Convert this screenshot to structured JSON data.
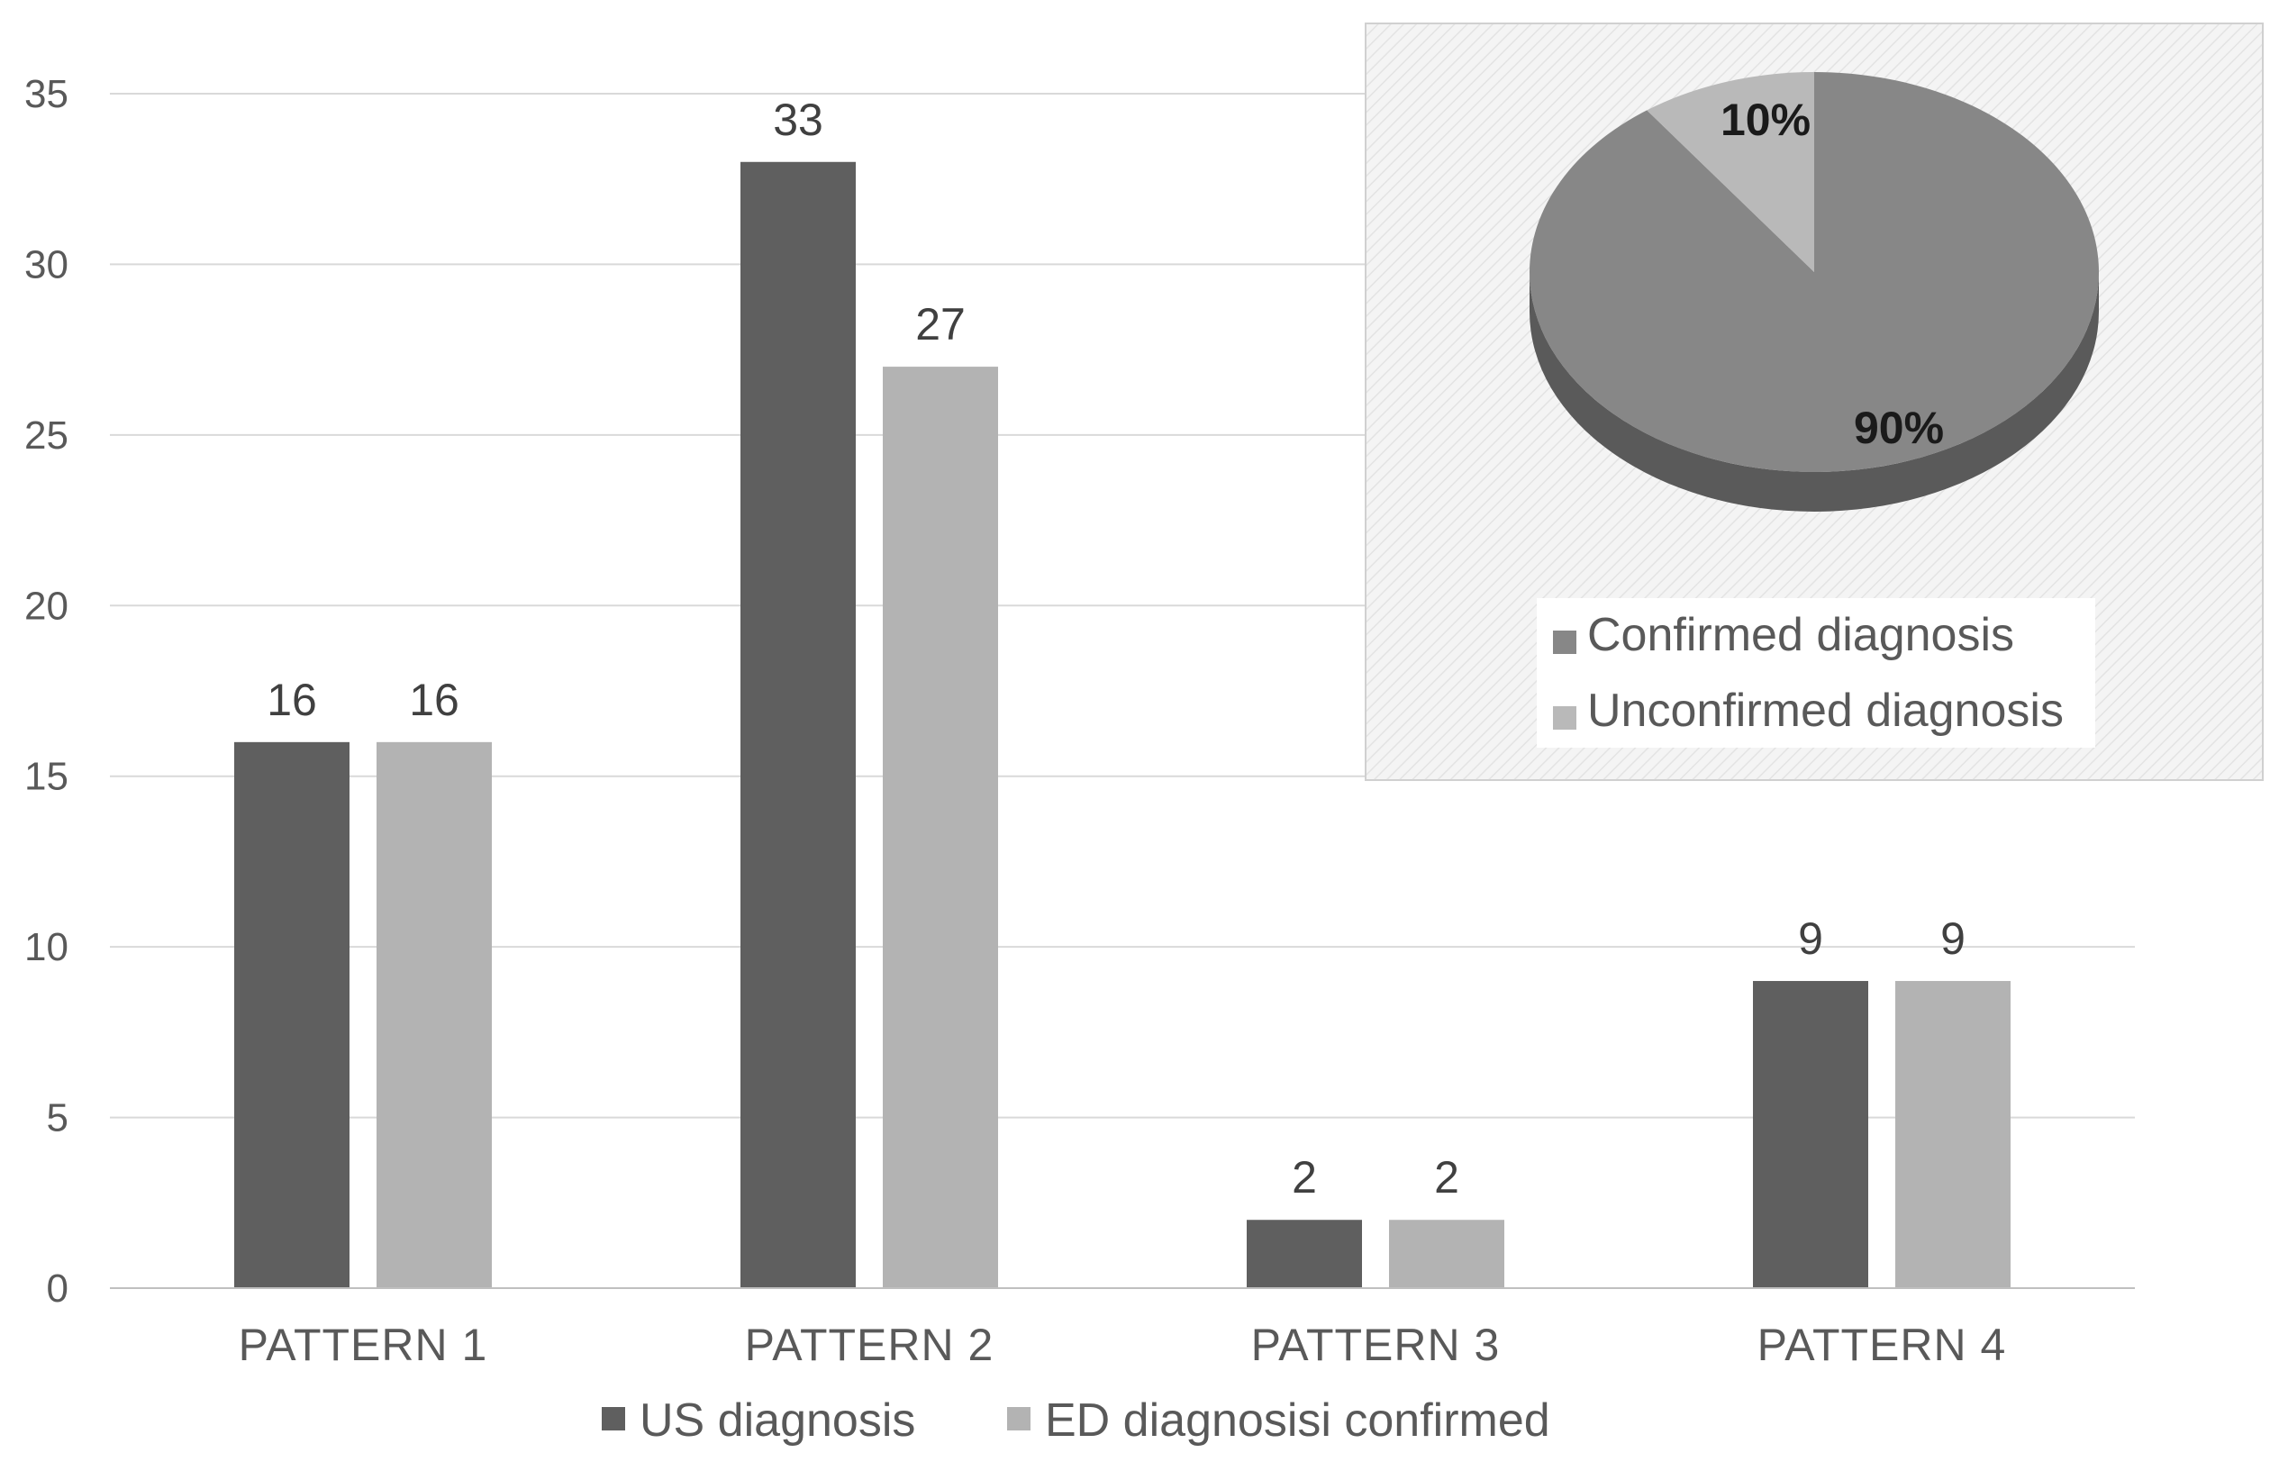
{
  "chart_data": [
    {
      "type": "bar",
      "categories": [
        "PATTERN 1",
        "PATTERN 2",
        "PATTERN 3",
        "PATTERN 4"
      ],
      "series": [
        {
          "name": "US diagnosis",
          "values": [
            16,
            33,
            2,
            9
          ],
          "color": "#5f5f5f"
        },
        {
          "name": "ED diagnosisi confirmed",
          "values": [
            16,
            27,
            2,
            9
          ],
          "color": "#b3b3b3"
        }
      ],
      "ylim": [
        0,
        35
      ],
      "yticks": [
        0,
        5,
        10,
        15,
        20,
        25,
        30,
        35
      ],
      "grid": true,
      "legend": "bottom",
      "data_labels": true,
      "gridline_color": "#d9d9d9"
    },
    {
      "type": "pie",
      "style": "3d",
      "slices": [
        {
          "name": "Confirmed diagnosis",
          "value": 90,
          "label": "90%",
          "color": "#878787"
        },
        {
          "name": "Unconfirmed diagnosis",
          "value": 10,
          "label": "10%",
          "color": "#b9b9b9"
        }
      ],
      "legend": "bottom",
      "position": "top-right inset",
      "background_pattern": "diagonal-hatch",
      "side_color": "#5a5a5a"
    }
  ]
}
